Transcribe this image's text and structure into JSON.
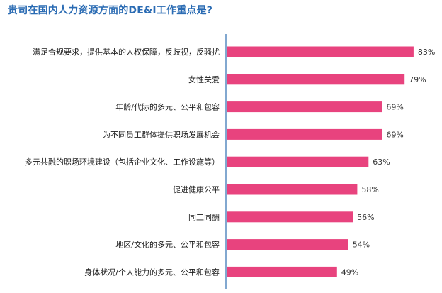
{
  "chart_data": {
    "type": "bar",
    "orientation": "horizontal",
    "title": "贵司在国内人力资源方面的DE&I工作重点是?",
    "categories": [
      "满足合规要求，提供基本的人权保障，反歧视，反骚扰",
      "女性关爱",
      "年龄/代际的多元、公平和包容",
      "为不同员工群体提供职场发展机会",
      "多元共融的职场环境建设（包括企业文化、工作设施等）",
      "促进健康公平",
      "同工同酬",
      "地区/文化的多元、公平和包容",
      "身体状况/个人能力的多元、公平和包容"
    ],
    "values": [
      83,
      79,
      69,
      69,
      63,
      58,
      56,
      54,
      49
    ],
    "value_labels": [
      "83%",
      "79%",
      "69%",
      "69%",
      "63%",
      "58%",
      "56%",
      "54%",
      "49%"
    ],
    "unit": "%",
    "xlim": [
      0,
      100
    ],
    "grid": false,
    "legend": "none",
    "bar_color": "#e8437e",
    "axis_color": "#2f6fb0"
  }
}
